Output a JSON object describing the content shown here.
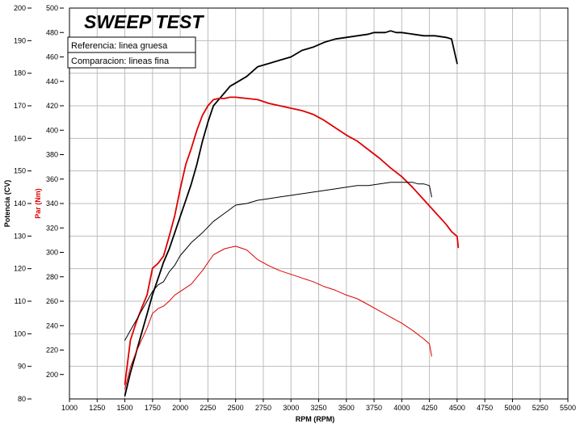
{
  "chart_data": {
    "type": "line",
    "title": "SWEEP TEST",
    "legend": [
      "Referencia: linea gruesa",
      "Comparacion: lineas fina"
    ],
    "xlabel": "RPM (RPM)",
    "ylabel_power": "Potencia (CV)",
    "ylabel_torque": "Par (Nm)",
    "xlim": [
      1000,
      5500
    ],
    "ylim_power": [
      80,
      200
    ],
    "ylim_torque": [
      180,
      500
    ],
    "x_ticks": [
      1000,
      1250,
      1500,
      1750,
      2000,
      2250,
      2500,
      2750,
      3000,
      3250,
      3500,
      3750,
      4000,
      4250,
      4500,
      4750,
      5000,
      5250,
      5500
    ],
    "power_ticks": [
      80,
      90,
      100,
      110,
      120,
      130,
      140,
      150,
      160,
      170,
      180,
      190,
      200
    ],
    "torque_ticks": [
      200,
      220,
      240,
      260,
      280,
      300,
      320,
      340,
      360,
      380,
      400,
      420,
      440,
      460,
      480,
      500
    ],
    "grid": true,
    "series": [
      {
        "name": "Referencia: linea gruesa",
        "axis": "power",
        "color": "#000000",
        "weight": "thick",
        "x": [
          1500,
          1550,
          1600,
          1650,
          1700,
          1750,
          1800,
          1850,
          1900,
          1950,
          2000,
          2050,
          2100,
          2150,
          2200,
          2250,
          2300,
          2350,
          2400,
          2450,
          2500,
          2600,
          2700,
          2800,
          2900,
          3000,
          3100,
          3200,
          3300,
          3400,
          3500,
          3600,
          3700,
          3750,
          3800,
          3850,
          3900,
          3950,
          4000,
          4100,
          4200,
          4300,
          4400,
          4450,
          4500
        ],
        "y": [
          81,
          88,
          94,
          100,
          106,
          112,
          117,
          122,
          126,
          131,
          136,
          141,
          146,
          152,
          159,
          165,
          170,
          172,
          174,
          176,
          177,
          179,
          182,
          183,
          184,
          185,
          187,
          188,
          189.5,
          190.5,
          191,
          191.5,
          192,
          192.5,
          192.5,
          192.5,
          193,
          192.5,
          192.5,
          192,
          191.5,
          191.5,
          191,
          190.5,
          183
        ]
      },
      {
        "name": "Referencia: linea gruesa",
        "axis": "torque",
        "color": "#e00000",
        "weight": "thick",
        "x": [
          1500,
          1550,
          1600,
          1650,
          1700,
          1750,
          1800,
          1850,
          1900,
          1950,
          2000,
          2050,
          2100,
          2150,
          2200,
          2250,
          2300,
          2350,
          2400,
          2450,
          2500,
          2600,
          2700,
          2800,
          2900,
          3000,
          3100,
          3200,
          3300,
          3400,
          3500,
          3600,
          3700,
          3800,
          3900,
          4000,
          4100,
          4200,
          4300,
          4400,
          4450,
          4500,
          4510
        ],
        "y": [
          192,
          228,
          242,
          254,
          265,
          287,
          291,
          297,
          313,
          330,
          352,
          372,
          385,
          400,
          412,
          420,
          425,
          426,
          426,
          427,
          427,
          426,
          425,
          422,
          420,
          418,
          416,
          413,
          408,
          402,
          396,
          391,
          384,
          377,
          369,
          362,
          353,
          343,
          333,
          323,
          317,
          313,
          304
        ]
      },
      {
        "name": "Comparacion: lineas fina",
        "axis": "power",
        "color": "#000000",
        "weight": "thin",
        "x": [
          1500,
          1550,
          1600,
          1650,
          1700,
          1750,
          1800,
          1850,
          1900,
          1950,
          2000,
          2050,
          2100,
          2150,
          2200,
          2300,
          2400,
          2500,
          2600,
          2700,
          2800,
          2900,
          3000,
          3100,
          3200,
          3300,
          3400,
          3500,
          3600,
          3700,
          3800,
          3900,
          4000,
          4050,
          4100,
          4150,
          4200,
          4250,
          4270
        ],
        "y": [
          98,
          101,
          104,
          107,
          110,
          113,
          115,
          116,
          119,
          121,
          124,
          126,
          128,
          129.5,
          131,
          134.5,
          137,
          139.5,
          140,
          141,
          141.5,
          142,
          142.5,
          143,
          143.5,
          144,
          144.5,
          145,
          145.5,
          145.5,
          146,
          146.5,
          146.5,
          146.5,
          146.5,
          146,
          146,
          145.5,
          142
        ]
      },
      {
        "name": "Comparacion: lineas fina",
        "axis": "torque",
        "color": "#e00000",
        "weight": "thin",
        "x": [
          1500,
          1550,
          1600,
          1650,
          1700,
          1750,
          1800,
          1850,
          1900,
          1950,
          2000,
          2100,
          2200,
          2300,
          2400,
          2500,
          2600,
          2700,
          2800,
          2900,
          3000,
          3100,
          3200,
          3300,
          3400,
          3500,
          3600,
          3700,
          3800,
          3900,
          4000,
          4100,
          4200,
          4250,
          4270
        ],
        "y": [
          188,
          206,
          218,
          228,
          238,
          250,
          254,
          256,
          260,
          265,
          268,
          274,
          285,
          298,
          303,
          305,
          302,
          294,
          289,
          285,
          282,
          279,
          276,
          272,
          269,
          265,
          262,
          257,
          252,
          247,
          242,
          236,
          229,
          225,
          215
        ]
      }
    ]
  }
}
